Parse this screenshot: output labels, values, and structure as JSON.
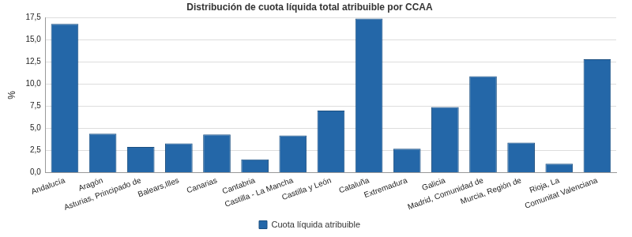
{
  "chart_data": {
    "type": "bar",
    "title": "Distribución de cuota líquida total atribuible por CCAA",
    "y_label": "%",
    "categories": [
      "Andalucía",
      "Aragón",
      "Asturias, Principado de",
      "Balears,Illes",
      "Canarias",
      "Cantabria",
      "Castilla - La Mancha",
      "Castilla y León",
      "Cataluña",
      "Extremadura",
      "Galicia",
      "Madrid, Comunidad de",
      "Murcia, Región de",
      "Rioja, La",
      "Comunitat Valenciana"
    ],
    "series": [
      {
        "name": "Cuota líquida atribuible",
        "color": "#2467a8",
        "values": [
          16.8,
          4.4,
          2.9,
          3.3,
          4.3,
          1.5,
          4.2,
          7.0,
          17.4,
          2.7,
          7.4,
          10.9,
          3.4,
          1.0,
          12.8
        ]
      }
    ],
    "ylim": [
      0,
      17.5
    ],
    "yticks": [
      {
        "value": 0,
        "label": "0,0"
      },
      {
        "value": 2.5,
        "label": "2,5"
      },
      {
        "value": 5,
        "label": "5,0"
      },
      {
        "value": 7.5,
        "label": "7,5"
      },
      {
        "value": 10,
        "label": "10,0"
      },
      {
        "value": 12.5,
        "label": "12,5"
      },
      {
        "value": 15,
        "label": "15,0"
      },
      {
        "value": 17.5,
        "label": "17,5"
      }
    ],
    "grid": "y",
    "legend": "bottom"
  }
}
